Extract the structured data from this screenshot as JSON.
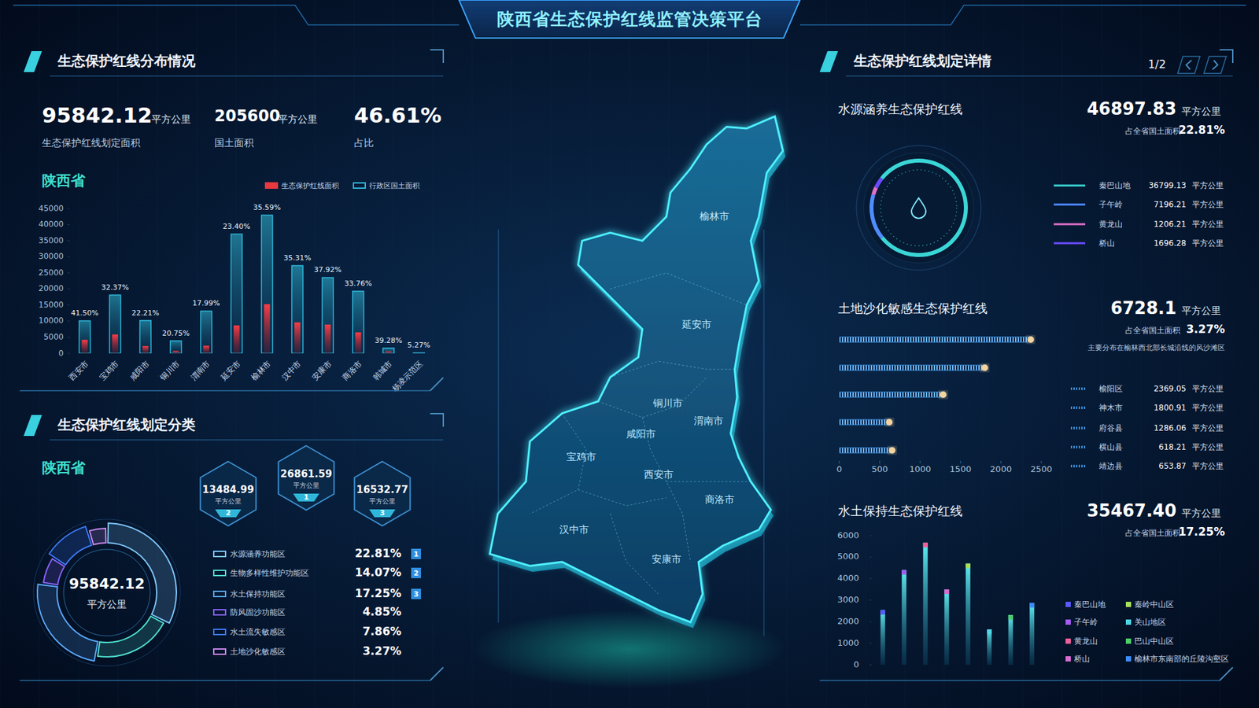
{
  "header": {
    "title": "陕西省生态保护红线监管决策平台"
  },
  "distribution": {
    "heading": "生态保护红线分布情况",
    "kpis": [
      {
        "value": "95842.12",
        "unit": "平方公里",
        "label": "生态保护红线划定面积"
      },
      {
        "value": "205600",
        "unit": "平方公里",
        "label": "国土面积"
      },
      {
        "value": "46.61%",
        "label": "占比"
      }
    ],
    "region": "陕西省"
  },
  "classification": {
    "heading": "生态保护红线划定分类",
    "region": "陕西省",
    "center_value": "95842.12",
    "center_unit": "平方公里",
    "ranks": [
      {
        "value": "13484.99",
        "unit": "平方公里",
        "rank": "2"
      },
      {
        "value": "26861.59",
        "unit": "平方公里",
        "rank": "1"
      },
      {
        "value": "16532.77",
        "unit": "平方公里",
        "rank": "3"
      }
    ]
  },
  "map": {
    "labels": [
      "榆林市",
      "延安市",
      "铜川市",
      "渭南市",
      "咸阳市",
      "宝鸡市",
      "西安市",
      "商洛市",
      "汉中市",
      "安康市"
    ]
  },
  "details": {
    "heading": "生态保护红线划定详情",
    "page": "1/2",
    "sections": [
      {
        "title": "水源涵养生态保护红线",
        "value": "46897.83",
        "unit": "平方公里",
        "share_label": "占全省国土面积",
        "share": "22.81%",
        "items": [
          {
            "name": "秦巴山地",
            "value": 36799.13,
            "unit": "平方公里",
            "color": "#3ad6d6"
          },
          {
            "name": "子午岭",
            "value": 7196.21,
            "unit": "平方公里",
            "color": "#4f8cff"
          },
          {
            "name": "黄龙山",
            "value": 1206.21,
            "unit": "平方公里",
            "color": "#e070c8"
          },
          {
            "name": "桥山",
            "value": 1696.28,
            "unit": "平方公里",
            "color": "#6a4cff"
          }
        ]
      },
      {
        "title": "土地沙化敏感生态保护红线",
        "value": "6728.1",
        "unit": "平方公里",
        "share_label": "占全省国土面积",
        "share": "3.27%",
        "note": "主要分布在榆林西北部长城沿线的风沙滩区"
      },
      {
        "title": "水土保持生态保护红线",
        "value": "35467.40",
        "unit": "平方公里",
        "share_label": "占全省国土面积",
        "share": "17.25%"
      }
    ]
  },
  "chart_data": [
    {
      "type": "bar",
      "categories": [
        "西安市",
        "宝鸡市",
        "咸阳市",
        "铜川市",
        "渭南市",
        "延安市",
        "榆林市",
        "汉中市",
        "安康市",
        "商洛市",
        "韩城市",
        "杨凌示范区"
      ],
      "series": [
        {
          "name": "生态保护红线面积",
          "color": "#e8393f",
          "values": [
            4195,
            5864,
            2264,
            806,
            2363,
            8667,
            15275,
            9621,
            8922,
            6513,
            637,
            7
          ]
        },
        {
          "name": "行政区国土面积",
          "color": "#2fb7d9",
          "values": [
            10108,
            18117,
            10196,
            3882,
            13134,
            37037,
            42920,
            27246,
            23529,
            19292,
            1621,
            135
          ]
        }
      ],
      "annotations": [
        "41.50%",
        "32.37%",
        "22.21%",
        "20.75%",
        "17.99%",
        "23.40%",
        "35.59%",
        "35.31%",
        "37.92%",
        "33.76%",
        "39.28%",
        "5.27%"
      ],
      "ylim": [
        0,
        45000
      ],
      "yticks": [
        0,
        5000,
        10000,
        15000,
        20000,
        25000,
        30000,
        35000,
        40000,
        45000
      ],
      "grid": false,
      "legend": "top-right"
    },
    {
      "type": "pie",
      "categories": [
        "水源涵养功能区",
        "生物多样性维护功能区",
        "水土保持功能区",
        "防风固沙功能区",
        "水土流失敏感区",
        "土地沙化敏感区"
      ],
      "values": [
        22.81,
        14.07,
        17.25,
        4.85,
        7.86,
        3.27
      ],
      "value_labels": [
        "22.81%",
        "14.07%",
        "17.25%",
        "4.85%",
        "7.86%",
        "3.27%"
      ],
      "colors": [
        "#7fc8ff",
        "#4fe0d0",
        "#5aa8ff",
        "#8a63ff",
        "#3d7bff",
        "#c98af0"
      ],
      "badges": [
        "1",
        "2",
        "3"
      ]
    },
    {
      "type": "bar",
      "orientation": "horizontal",
      "categories": [
        "榆阳区",
        "神木市",
        "府谷县",
        "横山县",
        "靖边县"
      ],
      "values": [
        2369.05,
        1800.91,
        1286.06,
        618.21,
        653.87
      ],
      "unit": "平方公里",
      "color": "#3b8fd9",
      "xlim": [
        0,
        2500
      ],
      "xticks": [
        0,
        500,
        1000,
        1500,
        2000,
        2500
      ],
      "tick_labels": "x",
      "grid": false
    },
    {
      "type": "bar",
      "categories": [
        "秦巴山地",
        "子午岭",
        "黄龙山",
        "桥山",
        "秦岭中山区",
        "关山地区",
        "巴山中山区",
        "榆林市东南部的丘陵沟壑区"
      ],
      "values": [
        2540,
        4400,
        5670,
        3500,
        4700,
        1640,
        2310,
        2870
      ],
      "colors": [
        "#5b5bff",
        "#a45cf5",
        "#f0609a",
        "#d96bd0",
        "#a8e05c",
        "#4fd6e6",
        "#4fcf6a",
        "#3d8bff"
      ],
      "ylim": [
        0,
        6000
      ],
      "yticks": [
        0,
        1000,
        2000,
        3000,
        4000,
        5000,
        6000
      ],
      "tick_labels": "y",
      "legend": "bottom-right",
      "grid": false
    }
  ]
}
